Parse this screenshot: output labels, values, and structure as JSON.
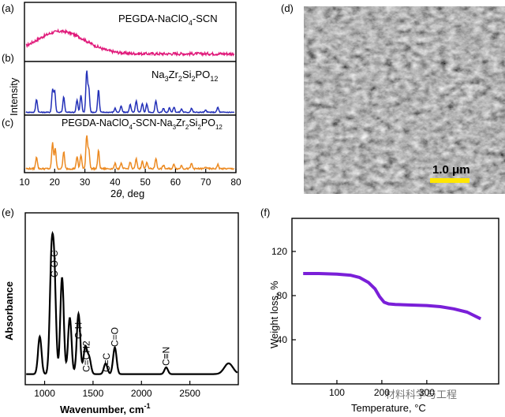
{
  "panels": {
    "a": {
      "label": "(a)",
      "series_name": "PEGDA-NaClO4-SCN",
      "color": "#e0197a"
    },
    "b": {
      "label": "(b)",
      "series_name": "Na3Zr2Si2PO12",
      "color": "#2330b8"
    },
    "c": {
      "label": "(c)",
      "series_name": "PEGDA-NaClO4-SCN-Na3Zr2Si2PO12",
      "color": "#ec8a22"
    },
    "d": {
      "label": "(d)",
      "scalebar_text": "1.0 μm",
      "scalebar_color": "#ffe600"
    },
    "e": {
      "label": "(e)"
    },
    "f": {
      "label": "(f)"
    }
  },
  "chart_data": [
    {
      "type": "line",
      "panel": "a-c",
      "xlabel": "2θ, deg",
      "ylabel": "Intensity",
      "xlim": [
        10,
        80
      ],
      "xticks": [
        10,
        20,
        30,
        40,
        50,
        60,
        70,
        80
      ],
      "series": [
        {
          "name": "PEGDA-NaClO4-SCN",
          "peaks": [
            [
              22,
              0.75
            ]
          ],
          "color": "#e0197a"
        },
        {
          "name": "Na3Zr2Si2PO12",
          "peaks": [
            [
              14,
              0.32
            ],
            [
              19.3,
              0.55
            ],
            [
              20,
              0.52
            ],
            [
              23,
              0.38
            ],
            [
              27.4,
              0.3
            ],
            [
              28.7,
              0.42
            ],
            [
              30.6,
              1.0
            ],
            [
              31.3,
              0.58
            ],
            [
              34.5,
              0.55
            ],
            [
              40,
              0.1
            ],
            [
              42,
              0.15
            ],
            [
              45,
              0.2
            ],
            [
              47,
              0.28
            ],
            [
              49,
              0.22
            ],
            [
              50.5,
              0.2
            ],
            [
              53.5,
              0.28
            ],
            [
              56,
              0.1
            ],
            [
              58,
              0.12
            ],
            [
              59.5,
              0.13
            ],
            [
              62,
              0.08
            ],
            [
              65.3,
              0.1
            ],
            [
              70,
              0.05
            ],
            [
              74,
              0.12
            ]
          ],
          "color": "#2330b8"
        },
        {
          "name": "PEGDA-NaClO4-SCN-Na3Zr2Si2PO12",
          "peaks": [
            [
              14,
              0.35
            ],
            [
              19.3,
              0.75
            ],
            [
              20.2,
              0.6
            ],
            [
              23,
              0.5
            ],
            [
              27.4,
              0.35
            ],
            [
              28.7,
              0.4
            ],
            [
              30.6,
              0.95
            ],
            [
              31.3,
              0.55
            ],
            [
              34.5,
              0.52
            ],
            [
              40,
              0.15
            ],
            [
              42,
              0.15
            ],
            [
              45,
              0.2
            ],
            [
              47,
              0.28
            ],
            [
              49,
              0.22
            ],
            [
              50.5,
              0.2
            ],
            [
              53.5,
              0.3
            ],
            [
              56,
              0.1
            ],
            [
              59.5,
              0.13
            ],
            [
              62,
              0.1
            ],
            [
              65.3,
              0.15
            ],
            [
              70,
              0.05
            ],
            [
              74,
              0.12
            ]
          ],
          "color": "#ec8a22"
        }
      ]
    },
    {
      "type": "line",
      "panel": "e",
      "xlabel": "Wavenumber, cm",
      "xlabel_sup": "-1",
      "ylabel": "Absorbance",
      "xlim": [
        800,
        3000
      ],
      "xticks": [
        1000,
        1500,
        2000,
        2500
      ],
      "annotations": [
        {
          "x": 1100,
          "text": "C-O-C"
        },
        {
          "x": 1350,
          "text": "C-H"
        },
        {
          "x": 1430,
          "text": "C=CH2"
        },
        {
          "x": 1640,
          "text": "C=C"
        },
        {
          "x": 1725,
          "text": "C=O"
        },
        {
          "x": 2255,
          "text": "C≡N"
        }
      ],
      "peaks": [
        [
          950,
          0.28
        ],
        [
          1070,
          0.78
        ],
        [
          1100,
          0.7
        ],
        [
          1180,
          0.72
        ],
        [
          1260,
          0.42
        ],
        [
          1350,
          0.45
        ],
        [
          1420,
          0.2
        ],
        [
          1460,
          0.12
        ],
        [
          1630,
          0.08
        ],
        [
          1725,
          0.2
        ],
        [
          2255,
          0.05
        ],
        [
          2900,
          0.08
        ]
      ],
      "color": "#000000"
    },
    {
      "type": "line",
      "panel": "f",
      "xlabel": "Temperature, °C",
      "ylabel": "Weight loss, %",
      "xlim": [
        0,
        460
      ],
      "ylim": [
        0,
        150
      ],
      "xticks": [
        100,
        200,
        300
      ],
      "yticks": [
        40,
        80,
        120
      ],
      "x": [
        25,
        60,
        100,
        130,
        150,
        170,
        185,
        195,
        205,
        215,
        230,
        260,
        300,
        330,
        360,
        390,
        420
      ],
      "y": [
        100,
        100,
        99.5,
        98.5,
        96.5,
        92,
        86,
        79,
        74,
        72.5,
        72,
        71.5,
        71,
        70,
        68,
        65,
        59
      ],
      "color": "#7a1fd8"
    }
  ],
  "watermark": {
    "text": "材料科学与工程"
  }
}
